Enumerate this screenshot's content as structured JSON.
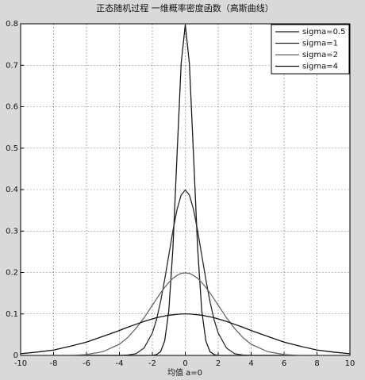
{
  "chart_data": {
    "type": "line",
    "title": "正态随机过程 一维概率密度函数（高斯曲线）",
    "x_label": "均值 a=0",
    "x": [
      -10,
      -9,
      -8,
      -7,
      -6,
      -5,
      -4,
      -3.5,
      -3,
      -2.5,
      -2,
      -1.75,
      -1.5,
      -1.25,
      -1,
      -0.75,
      -0.5,
      -0.25,
      0,
      0.25,
      0.5,
      0.75,
      1,
      1.25,
      1.5,
      1.75,
      2,
      2.5,
      3,
      3.5,
      4,
      5,
      6,
      7,
      8,
      9,
      10
    ],
    "series": [
      {
        "name": "sigma=0.5",
        "color": "#1a1a1a",
        "values": [
          0,
          0,
          0,
          0,
          0,
          0,
          0,
          0,
          0,
          0,
          0,
          0.002,
          0.009,
          0.035,
          0.108,
          0.259,
          0.484,
          0.704,
          0.798,
          0.704,
          0.484,
          0.259,
          0.108,
          0.035,
          0.009,
          0.002,
          0,
          0,
          0,
          0,
          0,
          0,
          0,
          0,
          0,
          0,
          0
        ]
      },
      {
        "name": "sigma=1",
        "color": "#2a2a2a",
        "values": [
          0,
          0,
          0,
          0,
          0,
          0,
          0,
          0.001,
          0.004,
          0.018,
          0.054,
          0.086,
          0.13,
          0.183,
          0.242,
          0.301,
          0.352,
          0.387,
          0.399,
          0.387,
          0.352,
          0.301,
          0.242,
          0.183,
          0.13,
          0.086,
          0.054,
          0.018,
          0.004,
          0.001,
          0,
          0,
          0,
          0,
          0,
          0,
          0
        ]
      },
      {
        "name": "sigma=2",
        "color": "#6a6a6a",
        "values": [
          0,
          0,
          0,
          0,
          0.002,
          0.009,
          0.027,
          0.043,
          0.065,
          0.091,
          0.121,
          0.136,
          0.151,
          0.164,
          0.176,
          0.186,
          0.193,
          0.198,
          0.199,
          0.198,
          0.193,
          0.186,
          0.176,
          0.164,
          0.151,
          0.136,
          0.121,
          0.091,
          0.065,
          0.043,
          0.027,
          0.009,
          0.002,
          0,
          0,
          0,
          0
        ]
      },
      {
        "name": "sigma=4",
        "color": "#111111",
        "values": [
          0.004,
          0.008,
          0.013,
          0.022,
          0.032,
          0.046,
          0.06,
          0.068,
          0.075,
          0.082,
          0.088,
          0.091,
          0.093,
          0.095,
          0.097,
          0.098,
          0.099,
          0.1,
          0.1,
          0.1,
          0.099,
          0.098,
          0.097,
          0.095,
          0.093,
          0.091,
          0.088,
          0.082,
          0.075,
          0.068,
          0.06,
          0.046,
          0.032,
          0.022,
          0.013,
          0.008,
          0.004
        ]
      }
    ],
    "xlim": [
      -10,
      10
    ],
    "xticks": [
      -10,
      -8,
      -6,
      -4,
      -2,
      0,
      2,
      4,
      6,
      8,
      10
    ],
    "ylim": [
      0,
      0.8
    ],
    "yticks": [
      0,
      0.1,
      0.2,
      0.3,
      0.4,
      0.5,
      0.6,
      0.7,
      0.8
    ],
    "grid": true,
    "legend": "upper right"
  }
}
